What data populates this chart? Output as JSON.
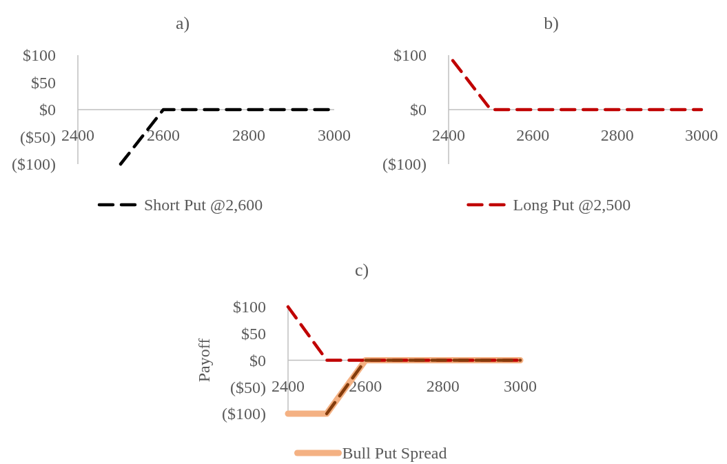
{
  "chart_data": [
    {
      "type": "line",
      "title": "a)",
      "xlim": [
        2400,
        3000
      ],
      "xticks": [
        2400,
        2600,
        2800,
        3000
      ],
      "ylim": [
        -100,
        100
      ],
      "yticks": [
        {
          "value": 100,
          "label": "$100"
        },
        {
          "value": 50,
          "label": "$50"
        },
        {
          "value": 0,
          "label": "$0"
        },
        {
          "value": -50,
          "label": "($50)"
        },
        {
          "value": -100,
          "label": "($100)"
        }
      ],
      "grid": false,
      "legend": "bottom",
      "series": [
        {
          "name": "Short Put @2,600",
          "color": "#000000",
          "line_style": "dashed",
          "x": [
            2500,
            2600,
            3000
          ],
          "values": [
            -100,
            0,
            0
          ]
        }
      ]
    },
    {
      "type": "line",
      "title": "b)",
      "xlim": [
        2400,
        3000
      ],
      "xticks": [
        2400,
        2600,
        2800,
        3000
      ],
      "ylim": [
        -100,
        100
      ],
      "yticks": [
        {
          "value": 100,
          "label": "$100"
        },
        {
          "value": 0,
          "label": "$0"
        },
        {
          "value": -100,
          "label": "($100)"
        }
      ],
      "grid": false,
      "legend": "bottom",
      "series": [
        {
          "name": "Long Put @2,500",
          "color": "#c00000",
          "line_style": "dashed",
          "x": [
            2410,
            2500,
            3000
          ],
          "values": [
            90,
            0,
            0
          ]
        }
      ]
    },
    {
      "type": "line",
      "title": "c)",
      "ylabel": "Payoff",
      "xlim": [
        2400,
        3000
      ],
      "xticks": [
        2400,
        2600,
        2800,
        3000
      ],
      "ylim": [
        -100,
        100
      ],
      "yticks": [
        {
          "value": 100,
          "label": "$100"
        },
        {
          "value": 50,
          "label": "$50"
        },
        {
          "value": 0,
          "label": "$0"
        },
        {
          "value": -50,
          "label": "($50)"
        },
        {
          "value": -100,
          "label": "($100)"
        }
      ],
      "grid": false,
      "legend": "bottom",
      "series": [
        {
          "name": "Bull Put Spread",
          "color": "#f4b183",
          "line_style": "solid",
          "x": [
            2400,
            2500,
            2600,
            3000
          ],
          "values": [
            -100,
            -100,
            0,
            0
          ]
        },
        {
          "color": "#c00000",
          "line_style": "dashed",
          "x": [
            2400,
            2500,
            3000
          ],
          "values": [
            100,
            0,
            0
          ]
        },
        {
          "color": "#843c0c",
          "line_style": "dashed",
          "x": [
            2500,
            2600,
            3000
          ],
          "values": [
            -100,
            0,
            0
          ]
        }
      ]
    }
  ]
}
